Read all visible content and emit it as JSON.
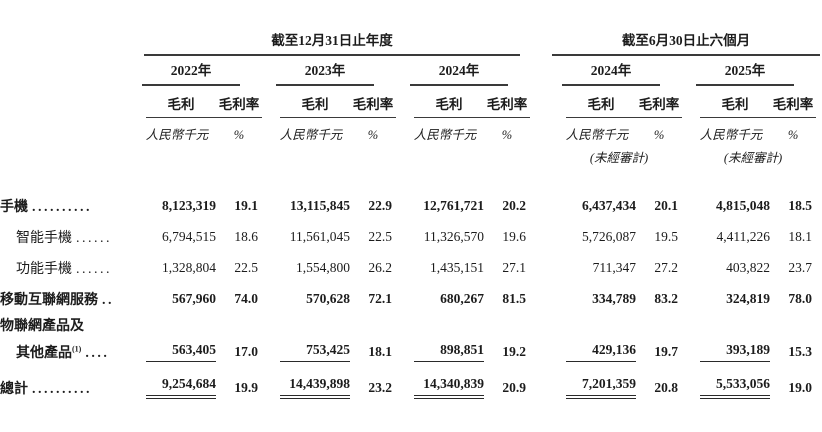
{
  "table": {
    "groups": [
      {
        "title": "截至12月31日止年度",
        "years": [
          "2022年",
          "2023年",
          "2024年"
        ]
      },
      {
        "title": "截至6月30日止六個月",
        "years": [
          "2024年",
          "2025年"
        ],
        "unaudited": "(未經審計)"
      }
    ],
    "col_headers": {
      "gross_profit": "毛利",
      "margin": "毛利率"
    },
    "units": {
      "currency": "人民幣千元",
      "percent": "%"
    },
    "rows": [
      {
        "label": "手機",
        "sup": "",
        "leader": "..........",
        "indent": false,
        "bold": true,
        "underline": "none",
        "values": [
          "8,123,319",
          "19.1",
          "13,115,845",
          "22.9",
          "12,761,721",
          "20.2",
          "6,437,434",
          "20.1",
          "4,815,048",
          "18.5"
        ]
      },
      {
        "label": "智能手機",
        "sup": "",
        "leader": "......",
        "indent": true,
        "bold": false,
        "underline": "none",
        "values": [
          "6,794,515",
          "18.6",
          "11,561,045",
          "22.5",
          "11,326,570",
          "19.6",
          "5,726,087",
          "19.5",
          "4,411,226",
          "18.1"
        ]
      },
      {
        "label": "功能手機",
        "sup": "",
        "leader": "......",
        "indent": true,
        "bold": false,
        "underline": "none",
        "values": [
          "1,328,804",
          "22.5",
          "1,554,800",
          "26.2",
          "1,435,151",
          "27.1",
          "711,347",
          "27.2",
          "403,822",
          "23.7"
        ]
      },
      {
        "label": "移動互聯網服務",
        "sup": "",
        "leader": "..",
        "indent": false,
        "bold": true,
        "underline": "none",
        "values": [
          "567,960",
          "74.0",
          "570,628",
          "72.1",
          "680,267",
          "81.5",
          "334,789",
          "83.2",
          "324,819",
          "78.0"
        ]
      },
      {
        "label": "物聯網產品及",
        "sup": "",
        "leader": "",
        "indent": false,
        "bold": true,
        "underline": "none",
        "values": []
      },
      {
        "label": "其他產品",
        "sup": "(1)",
        "leader": "....",
        "indent": true,
        "bold": true,
        "underline": "single",
        "values": [
          "563,405",
          "17.0",
          "753,425",
          "18.1",
          "898,851",
          "19.2",
          "429,136",
          "19.7",
          "393,189",
          "15.3"
        ]
      },
      {
        "label": "總計",
        "sup": "",
        "leader": "..........",
        "indent": false,
        "bold": true,
        "underline": "double",
        "values": [
          "9,254,684",
          "19.9",
          "14,439,898",
          "23.2",
          "14,340,839",
          "20.9",
          "7,201,359",
          "20.8",
          "5,533,056",
          "19.0"
        ]
      }
    ]
  }
}
